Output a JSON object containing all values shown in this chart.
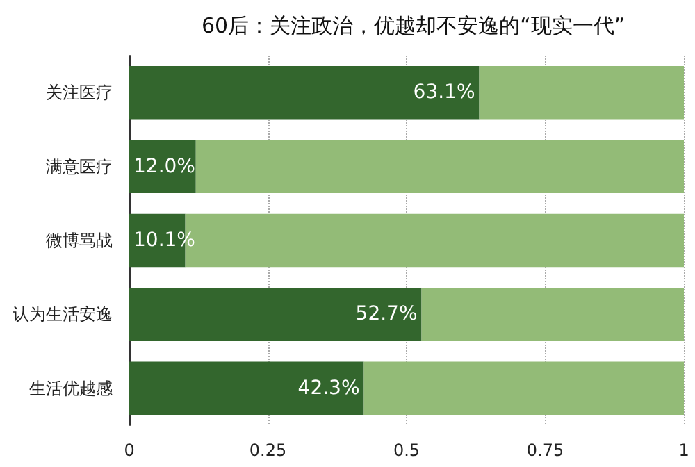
{
  "chart_data": {
    "type": "bar",
    "orientation": "horizontal",
    "stacked": true,
    "title": "60后：关注政治，优越却不安逸的“现实一代”",
    "categories": [
      "关注医疗",
      "满意医疗",
      "微博骂战",
      "认为生活安逸",
      "生活优越感"
    ],
    "series": [
      {
        "color": "#33662d",
        "values": [
          0.631,
          0.12,
          0.101,
          0.527,
          0.423
        ],
        "value_labels": [
          "63.1%",
          "12.0%",
          "10.1%",
          "52.7%",
          "42.3%"
        ]
      },
      {
        "color": "#93bb77",
        "values": [
          0.369,
          0.88,
          0.899,
          0.473,
          0.577
        ]
      }
    ],
    "xlim": [
      0,
      1
    ],
    "xticks": [
      0,
      0.25,
      0.5,
      0.75,
      1
    ],
    "grid": "x"
  }
}
